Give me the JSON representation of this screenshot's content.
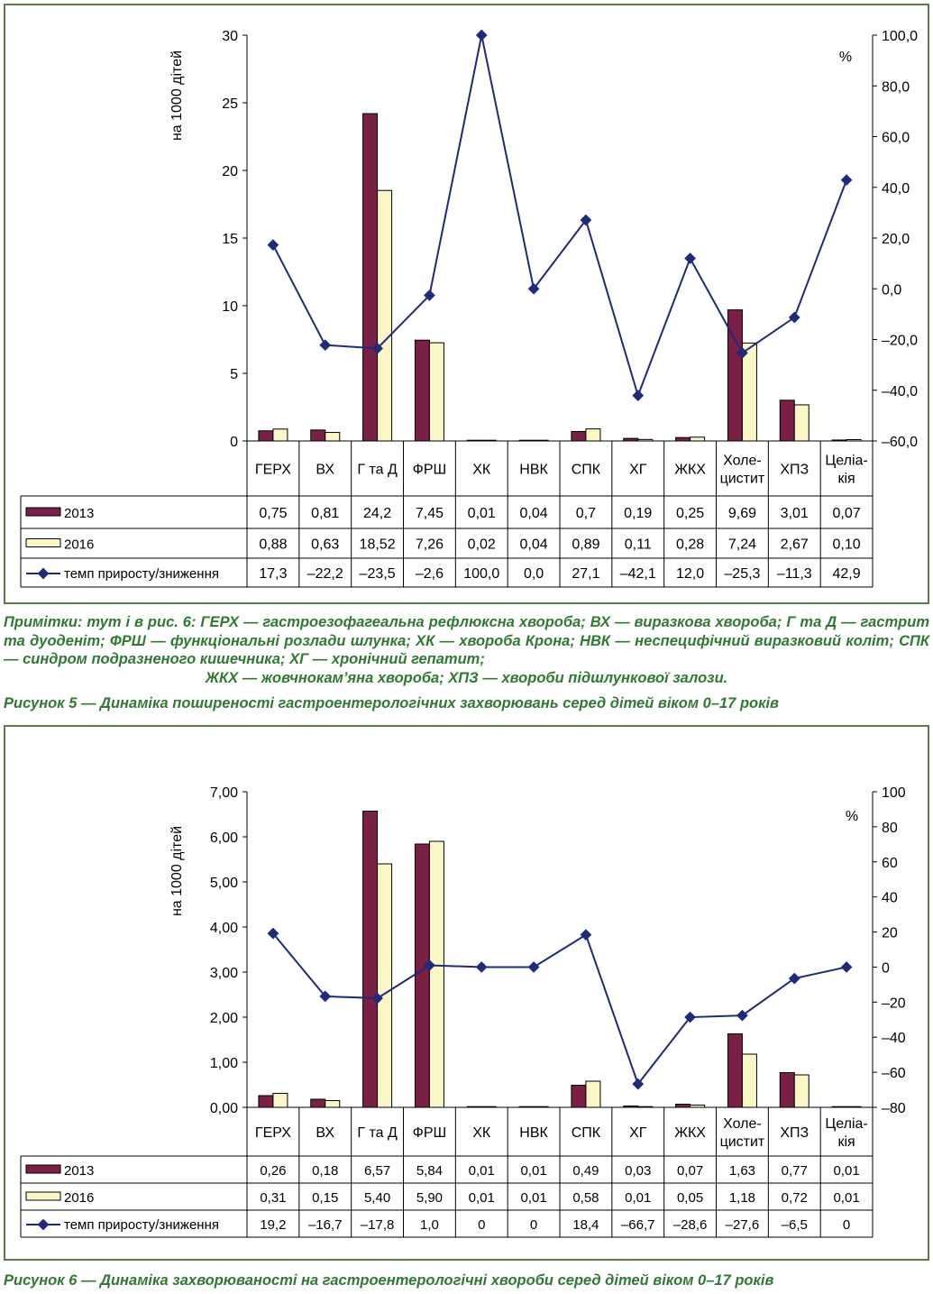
{
  "notes": {
    "lines": [
      "Примітки: тут і в рис. 6: ГЕРХ — гастроезофагеальна рефлюксна хвороба; ВХ — виразкова хвороба;",
      "Г та Д — гастрит та дуоденіт; ФРШ — функціональні розлади шлунка; ХК — хвороба Крона; НВК —",
      "неспецифічний виразковий коліт; СПК — синдром подразненого кишечника; ХГ — хронічний гепатит;",
      "ЖКХ — жовчнокам’яна хвороба; ХПЗ — хвороби підшлункової залози."
    ]
  },
  "captions": {
    "fig5": "Рисунок 5 — Динаміка поширеності гастроентерологічних захворювань серед дітей віком 0–17 років",
    "fig6": "Рисунок 6 — Динаміка захворюваності на гастроентерологічні хвороби серед дітей віком 0–17 років"
  },
  "chart_data": [
    {
      "type": "bar",
      "categories": [
        "ГЕРХ",
        "ВХ",
        "Г та Д",
        "ФРШ",
        "ХК",
        "НВК",
        "СПК",
        "ХГ",
        "ЖКХ",
        "Холе-\nцистит",
        "ХПЗ",
        "Целіа-\nкія"
      ],
      "ylabel": "на 1000 дітей",
      "y2label": "%",
      "ylim": [
        0,
        30
      ],
      "yticks": [
        "0",
        "5",
        "10",
        "15",
        "20",
        "25",
        "30"
      ],
      "y2lim": [
        -60,
        100
      ],
      "y2ticks": [
        "–60,0",
        "–40,0",
        "–20,0",
        "0,0",
        "20,0",
        "40,0",
        "60,0",
        "80,0",
        "100,0"
      ],
      "series": [
        {
          "name": "2013",
          "kind": "bar",
          "color": "#7a1f45",
          "values": [
            0.75,
            0.81,
            24.2,
            7.45,
            0.01,
            0.04,
            0.7,
            0.19,
            0.25,
            9.69,
            3.01,
            0.07
          ],
          "labels": [
            "0,75",
            "0,81",
            "24,2",
            "7,45",
            "0,01",
            "0,04",
            "0,7",
            "0,19",
            "0,25",
            "9,69",
            "3,01",
            "0,07"
          ]
        },
        {
          "name": "2016",
          "kind": "bar",
          "color": "#fbf6c6",
          "values": [
            0.88,
            0.63,
            18.52,
            7.26,
            0.02,
            0.04,
            0.89,
            0.11,
            0.28,
            7.24,
            2.67,
            0.1
          ],
          "labels": [
            "0,88",
            "0,63",
            "18,52",
            "7,26",
            "0,02",
            "0,04",
            "0,89",
            "0,11",
            "0,28",
            "7,24",
            "2,67",
            "0,10"
          ]
        },
        {
          "name": "темп приросту/зниження",
          "kind": "line",
          "axis": "right",
          "color": "#1f2a7a",
          "values": [
            17.3,
            -22.2,
            -23.5,
            -2.6,
            100.0,
            0.0,
            27.1,
            -42.1,
            12.0,
            -25.3,
            -11.3,
            42.9
          ],
          "labels": [
            "17,3",
            "–22,2",
            "–23,5",
            "–2,6",
            "100,0",
            "0,0",
            "27,1",
            "–42,1",
            "12,0",
            "–25,3",
            "–11,3",
            "42,9"
          ]
        }
      ]
    },
    {
      "type": "bar",
      "categories": [
        "ГЕРХ",
        "ВХ",
        "Г та Д",
        "ФРШ",
        "ХК",
        "НВК",
        "СПК",
        "ХГ",
        "ЖКХ",
        "Холе-\nцистит",
        "ХПЗ",
        "Целіа-\nкія"
      ],
      "ylabel": "на 1000 дітей",
      "y2label": "%",
      "ylim": [
        0,
        7
      ],
      "yticks": [
        "0,00",
        "1,00",
        "2,00",
        "3,00",
        "4,00",
        "5,00",
        "6,00",
        "7,00"
      ],
      "y2lim": [
        -80,
        100
      ],
      "y2ticks": [
        "–80",
        "–60",
        "–40",
        "–20",
        "0",
        "20",
        "40",
        "60",
        "80",
        "100"
      ],
      "series": [
        {
          "name": "2013",
          "kind": "bar",
          "color": "#7a1f45",
          "values": [
            0.26,
            0.18,
            6.57,
            5.84,
            0.01,
            0.01,
            0.49,
            0.03,
            0.07,
            1.63,
            0.77,
            0.01
          ],
          "labels": [
            "0,26",
            "0,18",
            "6,57",
            "5,84",
            "0,01",
            "0,01",
            "0,49",
            "0,03",
            "0,07",
            "1,63",
            "0,77",
            "0,01"
          ]
        },
        {
          "name": "2016",
          "kind": "bar",
          "color": "#fbf6c6",
          "values": [
            0.31,
            0.15,
            5.4,
            5.9,
            0.01,
            0.01,
            0.58,
            0.01,
            0.05,
            1.18,
            0.72,
            0.01
          ],
          "labels": [
            "0,31",
            "0,15",
            "5,40",
            "5,90",
            "0,01",
            "0,01",
            "0,58",
            "0,01",
            "0,05",
            "1,18",
            "0,72",
            "0,01"
          ]
        },
        {
          "name": "темп приросту/зниження",
          "kind": "line",
          "axis": "right",
          "color": "#1f2a7a",
          "values": [
            19.2,
            -16.7,
            -17.8,
            1.0,
            0,
            0,
            18.4,
            -66.7,
            -28.6,
            -27.6,
            -6.5,
            0
          ],
          "labels": [
            "19,2",
            "–16,7",
            "–17,8",
            "1,0",
            "0",
            "0",
            "18,4",
            "–66,7",
            "–28,6",
            "–27,6",
            "–6,5",
            "0"
          ]
        }
      ]
    }
  ]
}
